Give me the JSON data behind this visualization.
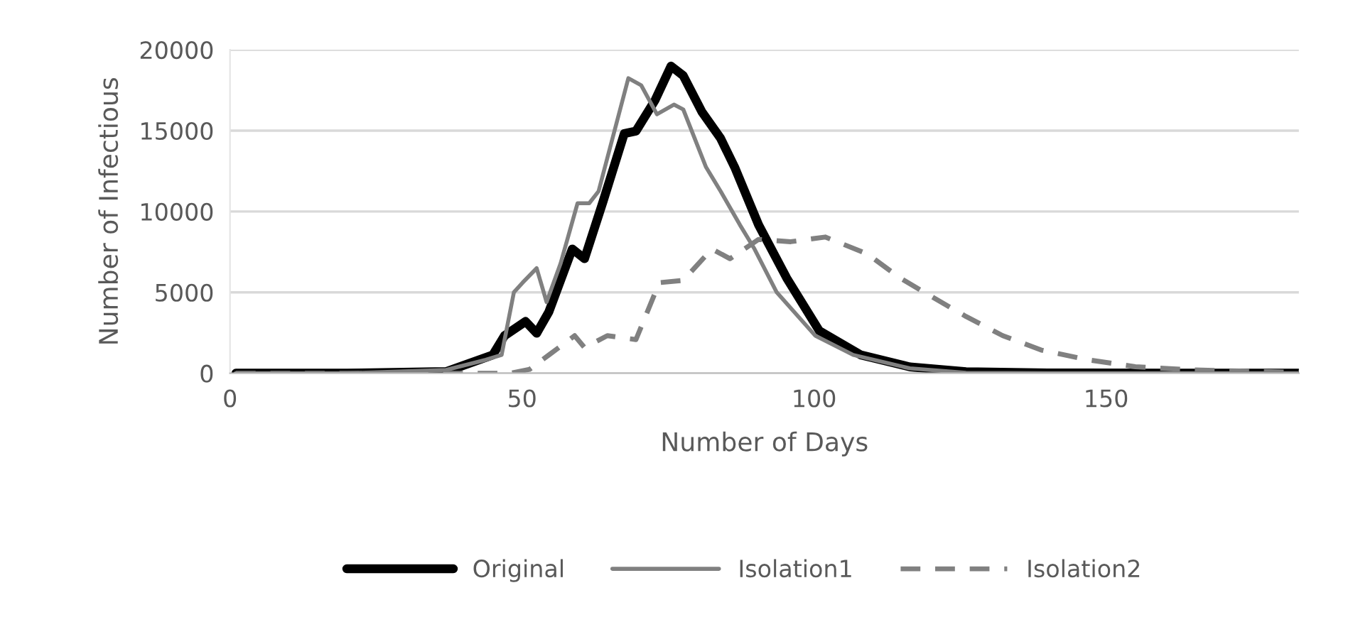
{
  "chart_data": {
    "type": "line",
    "xlabel": "Number of Days",
    "ylabel": "Number of Infectious",
    "xlim": [
      0,
      183
    ],
    "xticks": [
      0,
      50,
      100,
      150
    ],
    "ylim": [
      0,
      20000
    ],
    "yticks": [
      0,
      5000,
      10000,
      15000,
      20000
    ],
    "grid": "y",
    "legend": "bottom",
    "marker": "none",
    "series": [
      {
        "name": "Original",
        "color": "#000000",
        "line_style": "solid",
        "x": [
          1,
          20,
          37,
          45,
          47,
          50.6,
          52.5,
          54.6,
          58.6,
          60.7,
          63.9,
          67.5,
          69.5,
          72.8,
          75.5,
          77.6,
          80.8,
          84,
          86.4,
          90.5,
          95.3,
          100.9,
          108,
          116.4,
          126,
          140,
          160,
          183
        ],
        "values": [
          0,
          0,
          100,
          1130,
          2320,
          3200,
          2470,
          3800,
          7680,
          7080,
          10650,
          14820,
          14970,
          16900,
          18990,
          18400,
          16160,
          14520,
          12740,
          9170,
          5890,
          2620,
          1130,
          390,
          90,
          20,
          0,
          0
        ]
      },
      {
        "name": "Isolation1",
        "color": "#808080",
        "line_style": "solid",
        "x": [
          1,
          20,
          37,
          43.8,
          46.5,
          48.6,
          50.1,
          52.5,
          54.2,
          56.6,
          59.5,
          61.5,
          63.1,
          68.2,
          70.4,
          73.1,
          76,
          77.6,
          81.5,
          84,
          87.3,
          89.8,
          93.6,
          100.2,
          106.7,
          116.4,
          126,
          140,
          160,
          183
        ],
        "values": [
          0,
          0,
          200,
          830,
          1130,
          5000,
          5600,
          6490,
          4400,
          6790,
          10510,
          10510,
          11250,
          18240,
          17800,
          16010,
          16610,
          16310,
          12740,
          11250,
          9170,
          7680,
          5000,
          2320,
          1130,
          300,
          30,
          0,
          0,
          0
        ]
      },
      {
        "name": "Isolation2",
        "color": "#808080",
        "line_style": "dashed",
        "x": [
          1,
          30,
          48,
          51.3,
          54.6,
          59,
          60.7,
          64.6,
          69.5,
          73.5,
          77.6,
          82.5,
          85.6,
          90.5,
          96,
          101.9,
          109.1,
          114.7,
          120.3,
          126,
          132.3,
          138.9,
          146.9,
          155,
          165,
          183
        ],
        "values": [
          0,
          0,
          0,
          240,
          1130,
          2320,
          1580,
          2320,
          2080,
          5600,
          5740,
          7680,
          7080,
          8270,
          8130,
          8420,
          7380,
          5890,
          4700,
          3510,
          2320,
          1430,
          830,
          400,
          200,
          50
        ]
      }
    ]
  }
}
